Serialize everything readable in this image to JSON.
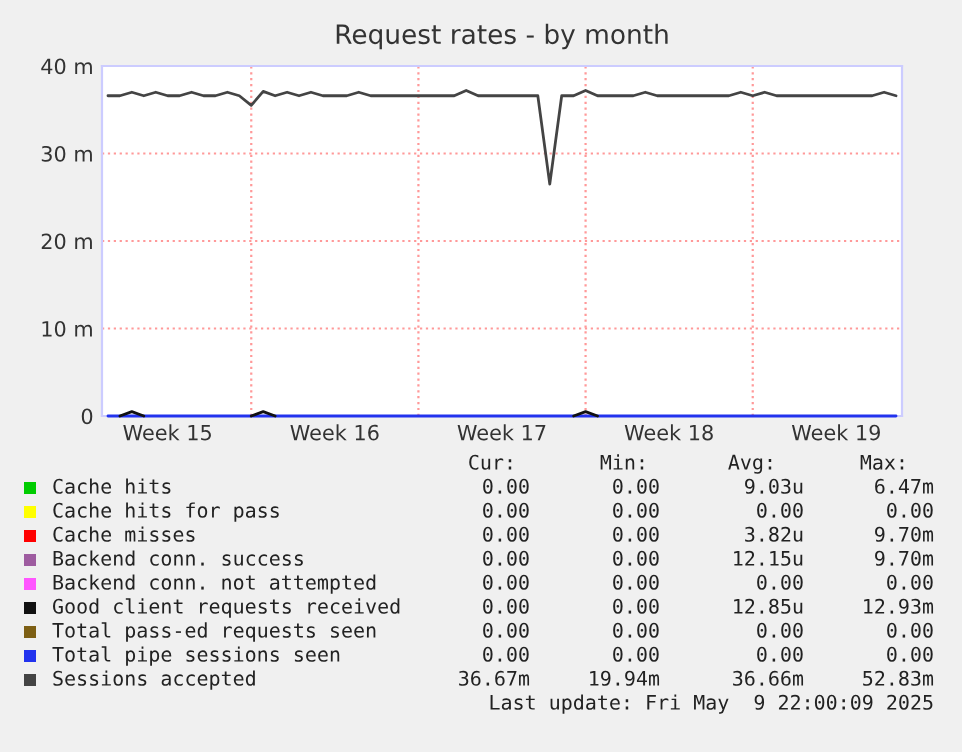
{
  "chart_data": {
    "type": "line",
    "title": "Request rates - by month",
    "categories": [
      null,
      null,
      null,
      null,
      null,
      "Week 15",
      null,
      null,
      null,
      null,
      null,
      null,
      null,
      null,
      null,
      null,
      null,
      null,
      null,
      "Week 16",
      null,
      null,
      null,
      null,
      null,
      null,
      null,
      null,
      null,
      null,
      null,
      null,
      null,
      "Week 17",
      null,
      null,
      null,
      null,
      null,
      null,
      null,
      null,
      null,
      null,
      null,
      null,
      null,
      "Week 18",
      null,
      null,
      null,
      null,
      null,
      null,
      null,
      null,
      null,
      null,
      null,
      null,
      null,
      "Week 19",
      null,
      null,
      null,
      null,
      null
    ],
    "ylim": [
      0,
      40
    ],
    "yticks": [
      0,
      {
        "value": 10,
        "label": "10 m"
      },
      {
        "value": 20,
        "label": "20 m"
      },
      {
        "value": 30,
        "label": "30 m"
      },
      {
        "value": 40,
        "label": "40 m"
      }
    ],
    "grid": true,
    "legend": "bottom",
    "series": [
      {
        "name": "Cache hits",
        "color": "#00cc00",
        "values": [
          null,
          null,
          null,
          null,
          null,
          null,
          null,
          null,
          null,
          null,
          null,
          null,
          null,
          null,
          null,
          null,
          null,
          null,
          null,
          null,
          null,
          null,
          null,
          null,
          null,
          null,
          null,
          null,
          null,
          null,
          null,
          null,
          null,
          null,
          null,
          null,
          null,
          null,
          null,
          null,
          null,
          null,
          null,
          null,
          null,
          null,
          null,
          null,
          null,
          null,
          null,
          null,
          null,
          null,
          null,
          null,
          null,
          null,
          null,
          null,
          null,
          null,
          null,
          null,
          null,
          null,
          null
        ]
      },
      {
        "name": "Cache hits for pass",
        "color": "#ffff00",
        "values": [
          null,
          null,
          null,
          null,
          null,
          null,
          null,
          null,
          null,
          null,
          null,
          null,
          null,
          null,
          null,
          null,
          null,
          null,
          null,
          null,
          null,
          null,
          null,
          null,
          null,
          null,
          null,
          null,
          null,
          null,
          null,
          null,
          null,
          null,
          null,
          null,
          null,
          null,
          null,
          null,
          null,
          null,
          null,
          null,
          null,
          null,
          null,
          null,
          null,
          null,
          null,
          null,
          null,
          null,
          null,
          null,
          null,
          null,
          null,
          null,
          null,
          null,
          null,
          null,
          null,
          null,
          null
        ]
      },
      {
        "name": "Cache misses",
        "color": "#ff0000",
        "values": [
          null,
          null,
          null,
          null,
          null,
          null,
          null,
          null,
          null,
          null,
          null,
          null,
          null,
          null,
          null,
          null,
          null,
          null,
          null,
          null,
          null,
          null,
          null,
          null,
          null,
          null,
          null,
          null,
          null,
          null,
          null,
          null,
          null,
          null,
          null,
          null,
          null,
          null,
          null,
          null,
          null,
          null,
          null,
          null,
          null,
          null,
          null,
          null,
          null,
          null,
          null,
          null,
          null,
          null,
          null,
          null,
          null,
          null,
          null,
          null,
          null,
          null,
          null,
          null,
          null,
          null,
          null
        ]
      },
      {
        "name": "Backend conn. success",
        "color": "#9e5ca0",
        "values": [
          null,
          null,
          null,
          null,
          null,
          null,
          null,
          null,
          null,
          null,
          null,
          null,
          null,
          null,
          null,
          null,
          null,
          null,
          null,
          null,
          null,
          null,
          null,
          null,
          null,
          null,
          null,
          null,
          null,
          null,
          null,
          null,
          null,
          null,
          null,
          null,
          null,
          null,
          null,
          null,
          null,
          null,
          null,
          null,
          null,
          null,
          null,
          null,
          null,
          null,
          null,
          null,
          null,
          null,
          null,
          null,
          null,
          null,
          null,
          null,
          null,
          null,
          null,
          null,
          null,
          null,
          null
        ]
      },
      {
        "name": "Backend conn. not attempted",
        "color": "#ff55ff",
        "values": [
          null,
          null,
          null,
          null,
          null,
          null,
          null,
          null,
          null,
          null,
          null,
          null,
          null,
          null,
          null,
          null,
          null,
          null,
          null,
          null,
          null,
          null,
          null,
          null,
          null,
          null,
          null,
          null,
          null,
          null,
          null,
          null,
          null,
          null,
          null,
          null,
          null,
          null,
          null,
          null,
          null,
          null,
          null,
          null,
          null,
          null,
          null,
          null,
          null,
          null,
          null,
          null,
          null,
          null,
          null,
          null,
          null,
          null,
          null,
          null,
          null,
          null,
          null,
          null,
          null,
          null,
          null
        ]
      },
      {
        "name": "Good client requests received",
        "color": "#111111",
        "values": [
          null,
          0,
          0.5,
          0,
          null,
          null,
          null,
          null,
          null,
          null,
          null,
          null,
          0,
          0.5,
          0,
          null,
          null,
          null,
          null,
          null,
          null,
          null,
          null,
          null,
          null,
          null,
          null,
          null,
          null,
          null,
          null,
          null,
          null,
          null,
          null,
          null,
          null,
          null,
          null,
          0,
          0.5,
          0,
          null,
          null,
          null,
          null,
          null,
          null,
          null,
          null,
          null,
          null,
          null,
          null,
          null,
          null,
          null,
          null,
          null,
          null,
          null,
          null,
          null,
          null,
          null,
          null,
          null
        ]
      },
      {
        "name": "Total pass-ed requests seen",
        "color": "#7d5f14",
        "values": [
          null,
          null,
          null,
          null,
          null,
          null,
          null,
          null,
          null,
          null,
          null,
          null,
          null,
          null,
          null,
          null,
          null,
          null,
          null,
          null,
          null,
          null,
          null,
          null,
          null,
          null,
          null,
          null,
          null,
          null,
          null,
          null,
          null,
          null,
          null,
          null,
          null,
          null,
          null,
          null,
          null,
          null,
          null,
          null,
          null,
          null,
          null,
          null,
          null,
          null,
          null,
          null,
          null,
          null,
          null,
          null,
          null,
          null,
          null,
          null,
          null,
          null,
          null,
          null,
          null,
          null,
          null
        ]
      },
      {
        "name": "Total pipe sessions seen",
        "color": "#2233ee",
        "values": [
          0,
          0,
          0,
          0,
          0,
          0,
          0,
          0,
          0,
          0,
          0,
          0,
          0,
          0,
          0,
          0,
          0,
          0,
          0,
          0,
          0,
          0,
          0,
          0,
          0,
          0,
          0,
          0,
          0,
          0,
          0,
          0,
          0,
          0,
          0,
          0,
          0,
          0,
          0,
          0,
          0,
          0,
          0,
          0,
          0,
          0,
          0,
          0,
          0,
          0,
          0,
          0,
          0,
          0,
          0,
          0,
          0,
          0,
          0,
          0,
          0,
          0,
          0,
          0,
          0,
          0,
          0
        ]
      },
      {
        "name": "Sessions accepted",
        "color": "#444444",
        "values": [
          36.6,
          36.6,
          37.0,
          36.6,
          37.0,
          36.6,
          36.6,
          37.0,
          36.6,
          36.6,
          37.0,
          36.6,
          35.5,
          37.1,
          36.6,
          37.0,
          36.6,
          37.0,
          36.6,
          36.6,
          36.6,
          37.0,
          36.6,
          36.6,
          36.6,
          36.6,
          36.6,
          36.6,
          36.6,
          36.6,
          37.2,
          36.6,
          36.6,
          36.6,
          36.6,
          36.6,
          36.6,
          26.5,
          36.6,
          36.6,
          37.2,
          36.6,
          36.6,
          36.6,
          36.6,
          37.0,
          36.6,
          36.6,
          36.6,
          36.6,
          36.6,
          36.6,
          36.6,
          37.0,
          36.6,
          37.0,
          36.6,
          36.6,
          36.6,
          36.6,
          36.6,
          36.6,
          36.6,
          36.6,
          36.6,
          37.0,
          36.6
        ]
      }
    ],
    "annotations": [
      "Cur:",
      "Min:",
      "Avg:",
      "Max:",
      "0.00",
      "0.00",
      "9.03u",
      "6.47m",
      "0.00",
      "0.00",
      "0.00",
      "0.00",
      "0.00",
      "0.00",
      "3.82u",
      "9.70m",
      "0.00",
      "0.00",
      "12.15u",
      "9.70m",
      "0.00",
      "0.00",
      "0.00",
      "0.00",
      "0.00",
      "0.00",
      "12.85u",
      "12.93m",
      "0.00",
      "0.00",
      "0.00",
      "0.00",
      "0.00",
      "0.00",
      "0.00",
      "0.00",
      "36.67m",
      "19.94m",
      "36.66m",
      "52.83m",
      "Last update: Fri May  9 22:00:09 2025"
    ]
  }
}
